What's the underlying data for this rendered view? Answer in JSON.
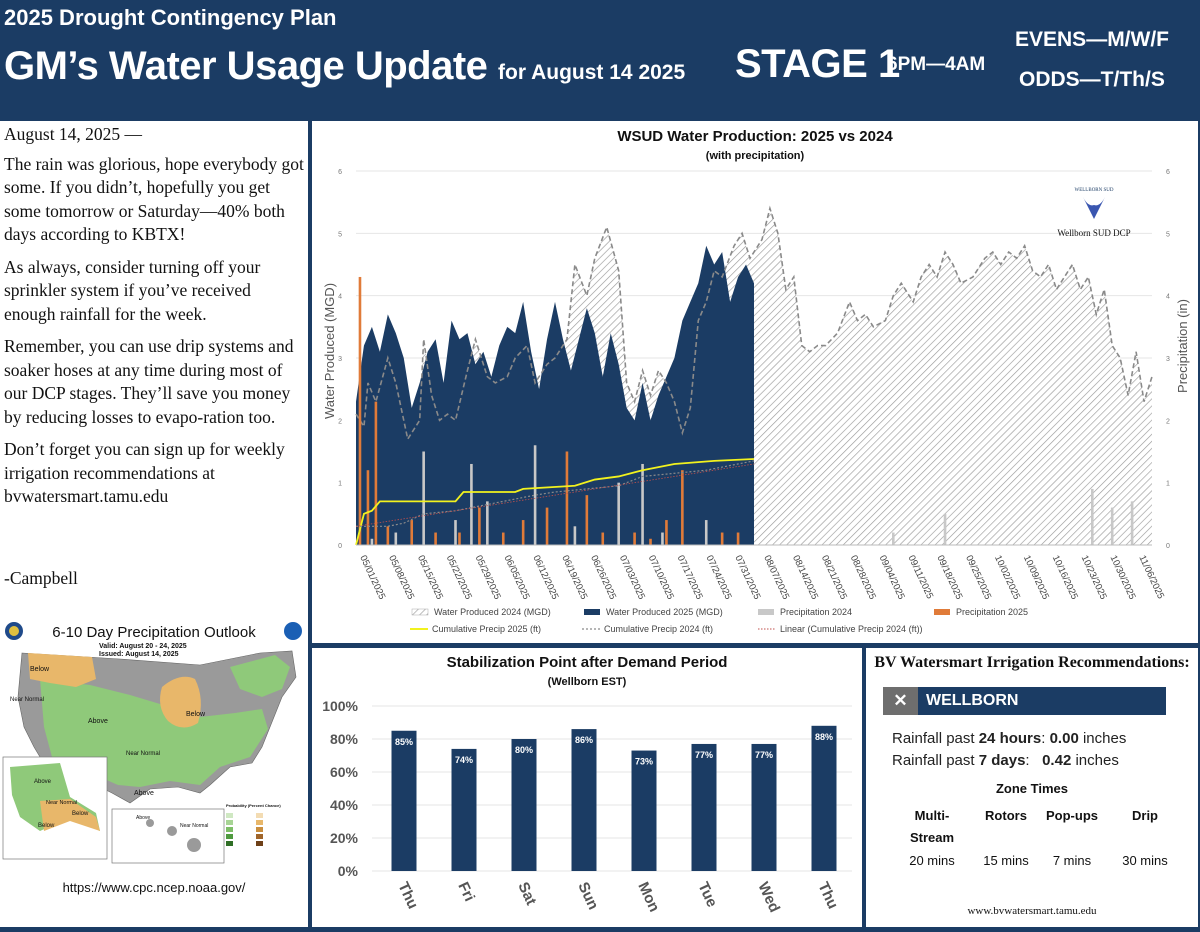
{
  "header": {
    "supertitle": "2025 Drought Contingency Plan",
    "title": "GM’s Water Usage Update",
    "title_suffix": "for August 14 2025",
    "stage": "STAGE 1",
    "hours": "6PM—4AM",
    "evens": "EVENS—M/W/F",
    "odds": "ODDS—T/Th/S"
  },
  "letter": {
    "date": "August 14, 2025 —",
    "paragraphs": [
      "The rain was glorious, hope everybody got some.  If you didn’t, hopefully you get some tomorrow or Saturday—40% both days according to KBTX!",
      "As always, consider turning off your sprinkler system if you’ve received enough rainfall for the week.",
      "Remember, you can use drip systems and soaker hoses at any time during most of our DCP stages.  They’ll save you money by reducing losses to evapo-ration too.",
      "Don’t forget you can sign up for weekly irrigation recommendations at bvwatersmart.tamu.edu"
    ],
    "signature": "-Campbell"
  },
  "outlook": {
    "title": "6-10 Day Precipitation Outlook",
    "valid": "Valid:  August 20 - 24, 2025",
    "issued": "Issued:  August 14, 2025",
    "region_labels": [
      "Below",
      "Near Normal",
      "Above",
      "Below",
      "Near Normal",
      "Above",
      "Above",
      "Near Normal",
      "Below",
      "Below",
      "Above",
      "Near Normal"
    ],
    "legend_title": "Probability (Percent Chance)",
    "url": "https://www.cpc.ncep.noaa.gov/",
    "colors": {
      "above": "#8fc97a",
      "below": "#e8b76a",
      "normal": "#9a9a9a",
      "land": "#ffffff",
      "water": "#ffffff"
    }
  },
  "chart_data": [
    {
      "type": "area",
      "title": "WSUD Water Production: 2025 vs 2024",
      "subtitle": "(with precipitation)",
      "ylabel": "Water Produced (MGD)",
      "y2label": "Precipitation (in)",
      "ylim": [
        0,
        6
      ],
      "y2lim": [
        0,
        6
      ],
      "yticks": [
        0,
        1,
        2,
        3,
        4,
        5,
        6
      ],
      "x_labels": [
        "05/01/2025",
        "05/08/2025",
        "05/15/2025",
        "05/22/2025",
        "05/29/2025",
        "06/05/2025",
        "06/12/2025",
        "06/19/2025",
        "06/26/2025",
        "07/03/2025",
        "07/10/2025",
        "07/17/2025",
        "07/24/2025",
        "07/31/2025",
        "08/07/2025",
        "08/14/2025",
        "08/21/2025",
        "08/28/2025",
        "09/04/2025",
        "09/11/2025",
        "09/18/2025",
        "09/25/2025",
        "10/02/2025",
        "10/09/2025",
        "10/16/2025",
        "10/23/2025",
        "10/30/2025",
        "11/06/2025"
      ],
      "logo_text": "WELLBORN SUD",
      "logo_caption": "Wellborn SUD DCP",
      "series": [
        {
          "name": "Water Produced 2024 (MGD)",
          "color": "#8a8a8a",
          "points": [
            [
              0,
              2.1
            ],
            [
              2,
              1.9
            ],
            [
              3,
              2.6
            ],
            [
              5,
              2.3
            ],
            [
              8,
              3.0
            ],
            [
              10,
              2.6
            ],
            [
              13,
              1.7
            ],
            [
              16,
              2.0
            ],
            [
              17,
              3.3
            ],
            [
              19,
              2.4
            ],
            [
              21,
              2.0
            ],
            [
              23,
              2.1
            ],
            [
              25,
              2.0
            ],
            [
              28,
              2.8
            ],
            [
              30,
              3.3
            ],
            [
              33,
              2.7
            ],
            [
              35,
              2.6
            ],
            [
              38,
              2.7
            ],
            [
              40,
              3.0
            ],
            [
              43,
              3.2
            ],
            [
              45,
              2.6
            ],
            [
              48,
              2.9
            ],
            [
              50,
              3.0
            ],
            [
              53,
              3.3
            ],
            [
              55,
              4.5
            ],
            [
              58,
              4.0
            ],
            [
              60,
              4.6
            ],
            [
              63,
              5.1
            ],
            [
              66,
              4.4
            ],
            [
              68,
              2.6
            ],
            [
              70,
              2.3
            ],
            [
              72,
              2.8
            ],
            [
              74,
              2.4
            ],
            [
              76,
              2.8
            ],
            [
              78,
              2.6
            ],
            [
              80,
              2.3
            ],
            [
              82,
              1.8
            ],
            [
              84,
              2.2
            ],
            [
              86,
              3.6
            ],
            [
              88,
              3.9
            ],
            [
              90,
              4.4
            ],
            [
              92,
              4.3
            ],
            [
              95,
              4.8
            ],
            [
              97,
              5.0
            ],
            [
              99,
              4.6
            ],
            [
              102,
              4.9
            ],
            [
              104,
              5.4
            ],
            [
              106,
              5.0
            ],
            [
              108,
              4.1
            ],
            [
              110,
              4.3
            ],
            [
              112,
              3.2
            ],
            [
              114,
              3.1
            ],
            [
              116,
              3.2
            ],
            [
              118,
              3.2
            ],
            [
              121,
              3.4
            ],
            [
              124,
              3.9
            ],
            [
              126,
              3.6
            ],
            [
              128,
              3.7
            ],
            [
              130,
              3.5
            ],
            [
              133,
              3.6
            ],
            [
              135,
              4.0
            ],
            [
              137,
              4.2
            ],
            [
              140,
              3.9
            ],
            [
              142,
              4.3
            ],
            [
              144,
              4.5
            ],
            [
              146,
              4.3
            ],
            [
              148,
              4.7
            ],
            [
              150,
              4.5
            ],
            [
              152,
              4.2
            ],
            [
              155,
              4.3
            ],
            [
              158,
              4.6
            ],
            [
              160,
              4.7
            ],
            [
              162,
              4.5
            ],
            [
              164,
              4.7
            ],
            [
              166,
              4.6
            ],
            [
              168,
              4.8
            ],
            [
              170,
              4.4
            ],
            [
              172,
              4.3
            ],
            [
              174,
              4.5
            ],
            [
              176,
              4.1
            ],
            [
              178,
              4.3
            ],
            [
              180,
              4.5
            ],
            [
              182,
              4.1
            ],
            [
              184,
              4.3
            ],
            [
              186,
              3.7
            ],
            [
              188,
              4.1
            ],
            [
              190,
              3.2
            ],
            [
              192,
              3.0
            ],
            [
              194,
              2.4
            ],
            [
              196,
              3.1
            ],
            [
              198,
              2.3
            ],
            [
              200,
              2.7
            ]
          ]
        },
        {
          "name": "Water Produced 2025 (MGD)",
          "color": "#1b3c64",
          "points": [
            [
              0,
              2.3
            ],
            [
              2,
              3.2
            ],
            [
              4,
              3.5
            ],
            [
              6,
              3.1
            ],
            [
              8,
              3.7
            ],
            [
              10,
              3.4
            ],
            [
              12,
              3.0
            ],
            [
              14,
              2.2
            ],
            [
              16,
              2.6
            ],
            [
              18,
              3.1
            ],
            [
              20,
              3.3
            ],
            [
              22,
              2.6
            ],
            [
              24,
              3.6
            ],
            [
              26,
              3.3
            ],
            [
              28,
              3.4
            ],
            [
              30,
              2.9
            ],
            [
              32,
              3.1
            ],
            [
              34,
              2.7
            ],
            [
              36,
              3.2
            ],
            [
              38,
              3.5
            ],
            [
              40,
              3.4
            ],
            [
              42,
              3.9
            ],
            [
              44,
              3.1
            ],
            [
              46,
              2.5
            ],
            [
              48,
              3.3
            ],
            [
              50,
              3.9
            ],
            [
              52,
              3.3
            ],
            [
              54,
              2.8
            ],
            [
              56,
              3.3
            ],
            [
              58,
              3.8
            ],
            [
              60,
              3.4
            ],
            [
              62,
              2.7
            ],
            [
              64,
              3.4
            ],
            [
              66,
              2.9
            ],
            [
              68,
              2.2
            ],
            [
              70,
              2.0
            ],
            [
              72,
              2.6
            ],
            [
              74,
              2.0
            ],
            [
              76,
              2.4
            ],
            [
              78,
              2.7
            ],
            [
              80,
              3.0
            ],
            [
              82,
              3.6
            ],
            [
              84,
              3.9
            ],
            [
              86,
              4.2
            ],
            [
              88,
              4.8
            ],
            [
              90,
              4.5
            ],
            [
              92,
              4.7
            ],
            [
              94,
              3.9
            ],
            [
              96,
              4.3
            ],
            [
              98,
              4.5
            ],
            [
              100,
              4.2
            ]
          ]
        },
        {
          "name": "Precipitation 2024",
          "color": "#c8c8c8",
          "points": [
            [
              4,
              0.1
            ],
            [
              10,
              0.2
            ],
            [
              17,
              1.5
            ],
            [
              25,
              0.4
            ],
            [
              29,
              1.3
            ],
            [
              33,
              0.7
            ],
            [
              45,
              1.6
            ],
            [
              55,
              0.3
            ],
            [
              66,
              1.0
            ],
            [
              72,
              1.3
            ],
            [
              77,
              0.2
            ],
            [
              88,
              0.4
            ],
            [
              135,
              0.2
            ],
            [
              148,
              0.5
            ],
            [
              185,
              0.9
            ],
            [
              190,
              0.6
            ],
            [
              195,
              0.7
            ]
          ]
        },
        {
          "name": "Precipitation 2025",
          "color": "#e07b39",
          "points": [
            [
              1,
              4.3
            ],
            [
              3,
              1.2
            ],
            [
              5,
              2.3
            ],
            [
              8,
              0.3
            ],
            [
              14,
              0.4
            ],
            [
              20,
              0.2
            ],
            [
              26,
              0.2
            ],
            [
              31,
              0.6
            ],
            [
              37,
              0.2
            ],
            [
              42,
              0.4
            ],
            [
              48,
              0.6
            ],
            [
              53,
              1.5
            ],
            [
              58,
              0.8
            ],
            [
              62,
              0.2
            ],
            [
              70,
              0.2
            ],
            [
              74,
              0.1
            ],
            [
              78,
              0.4
            ],
            [
              82,
              1.2
            ],
            [
              92,
              0.2
            ],
            [
              96,
              0.2
            ]
          ]
        },
        {
          "name": "Cumulative Precip 2025 (ft)",
          "color": "#f2f21e",
          "points": [
            [
              0,
              0.0
            ],
            [
              2,
              0.5
            ],
            [
              4,
              0.55
            ],
            [
              6,
              0.7
            ],
            [
              25,
              0.7
            ],
            [
              27,
              0.85
            ],
            [
              40,
              0.85
            ],
            [
              42,
              0.9
            ],
            [
              55,
              0.95
            ],
            [
              60,
              1.05
            ],
            [
              66,
              1.1
            ],
            [
              72,
              1.2
            ],
            [
              80,
              1.3
            ],
            [
              90,
              1.35
            ],
            [
              100,
              1.38
            ]
          ]
        },
        {
          "name": "Cumulative Precip 2024 (ft)",
          "color": "#8a8a8a",
          "points": [
            [
              0,
              0.3
            ],
            [
              8,
              0.3
            ],
            [
              12,
              0.35
            ],
            [
              17,
              0.5
            ],
            [
              25,
              0.55
            ],
            [
              29,
              0.6
            ],
            [
              45,
              0.8
            ],
            [
              50,
              0.85
            ],
            [
              66,
              0.95
            ],
            [
              72,
              1.1
            ],
            [
              88,
              1.2
            ],
            [
              100,
              1.35
            ]
          ]
        },
        {
          "name": "Linear (Cumulative Precip 2024 (ft))",
          "color": "#c0504d",
          "points": [
            [
              0,
              0.3
            ],
            [
              100,
              1.3
            ]
          ]
        }
      ]
    },
    {
      "type": "bar",
      "title": "Stabilization Point after Demand Period",
      "subtitle": "(Wellborn EST)",
      "categories": [
        "Thu",
        "Fri",
        "Sat",
        "Sun",
        "Mon",
        "Tue",
        "Wed",
        "Thu"
      ],
      "values": [
        85,
        74,
        80,
        86,
        73,
        77,
        77,
        88
      ],
      "value_labels": [
        "85%",
        "74%",
        "80%",
        "86%",
        "73%",
        "77%",
        "77%",
        "88%"
      ],
      "yticks": [
        "0%",
        "20%",
        "40%",
        "60%",
        "80%",
        "100%"
      ],
      "ylim": [
        0,
        100
      ],
      "color": "#1b3c64"
    }
  ],
  "irrigation": {
    "title": "BV Watersmart Irrigation Recommendations:",
    "close_glyph": "✕",
    "station": "WELLBORN",
    "rain24_prefix": "Rainfall past ",
    "rain24_period": "24 hours",
    "rain24_colon": ": ",
    "rain24_value": "0.00",
    "rain24_unit": " inches",
    "rain7_prefix": "Rainfall past ",
    "rain7_period": "7 days",
    "rain7_colon": ":   ",
    "rain7_value": "0.42",
    "rain7_unit": " inches",
    "zone_title": "Zone Times",
    "zones": [
      {
        "head1": "Multi-",
        "head2": "Stream",
        "time": "20 mins"
      },
      {
        "head1": "Rotors",
        "head2": "",
        "time": "15 mins"
      },
      {
        "head1": "Pop-ups",
        "head2": "",
        "time": "7 mins"
      },
      {
        "head1": "Drip",
        "head2": "",
        "time": "30 mins"
      }
    ],
    "url": "www.bvwatersmart.tamu.edu"
  }
}
